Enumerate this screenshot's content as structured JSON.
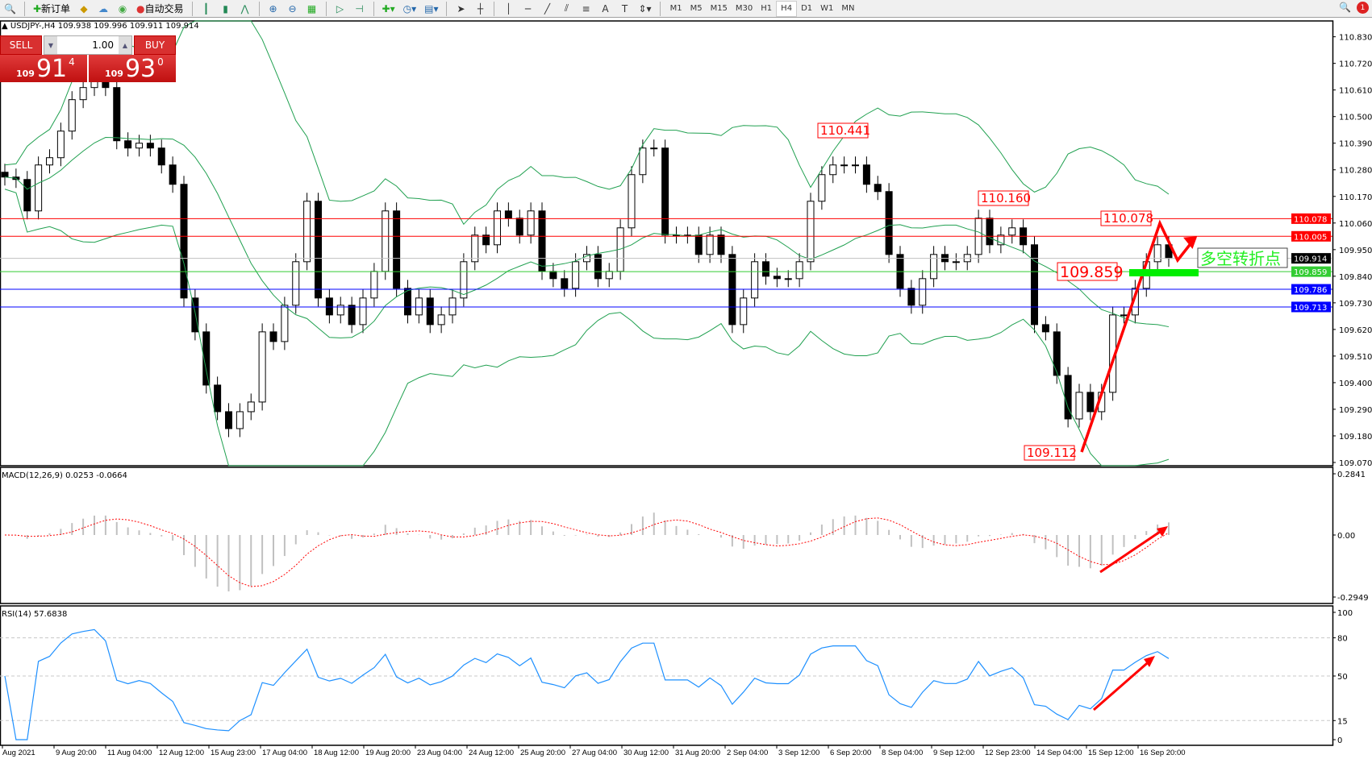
{
  "toolbar": {
    "new_order": "新订单",
    "auto_trading": "自动交易",
    "timeframes": [
      "M1",
      "M5",
      "M15",
      "M30",
      "H1",
      "H4",
      "D1",
      "W1",
      "MN"
    ],
    "active_timeframe": "H4",
    "notification_count": "1"
  },
  "chart": {
    "symbol_info": "USDJPY-,H4  109.938 109.996 109.911 109.914",
    "price_ticks": [
      "110.830",
      "110.720",
      "110.610",
      "110.500",
      "110.390",
      "110.280",
      "110.170",
      "110.060",
      "109.950",
      "109.840",
      "109.730",
      "109.620",
      "109.510",
      "109.400",
      "109.290",
      "109.180",
      "109.070"
    ],
    "price_range": [
      109.07,
      110.83
    ],
    "levels": [
      {
        "price": 110.078,
        "label": "110.078",
        "color": "#ff0000"
      },
      {
        "price": 110.005,
        "label": "110.005",
        "color": "#ff0000"
      },
      {
        "price": 109.914,
        "label": "109.914",
        "color": "#000000",
        "line": "#c0c0c0"
      },
      {
        "price": 109.859,
        "label": "109.859",
        "color": "#33cc33"
      },
      {
        "price": 109.786,
        "label": "109.786",
        "color": "#0000ff"
      },
      {
        "price": 109.713,
        "label": "109.713",
        "color": "#0000ff"
      }
    ],
    "annotations": [
      "110.441",
      "110.160",
      "110.078",
      "109.859",
      "109.112"
    ],
    "turning_point_text": "多空转折点",
    "closes": [
      110.25,
      110.24,
      110.11,
      110.3,
      110.33,
      110.44,
      110.57,
      110.62,
      110.66,
      110.62,
      110.4,
      110.37,
      110.39,
      110.37,
      110.3,
      110.22,
      109.75,
      109.61,
      109.39,
      109.28,
      109.21,
      109.28,
      109.32,
      109.61,
      109.57,
      109.72,
      109.9,
      110.15,
      109.75,
      109.68,
      109.72,
      109.64,
      109.75,
      109.86,
      110.11,
      109.79,
      109.68,
      109.75,
      109.64,
      109.68,
      109.75,
      109.9,
      110.01,
      109.97,
      110.11,
      110.08,
      110.01,
      110.11,
      109.86,
      109.83,
      109.79,
      109.9,
      109.93,
      109.83,
      109.86,
      110.04,
      110.26,
      110.37,
      110.37,
      110.01,
      110.01,
      110.01,
      109.93,
      110.01,
      109.93,
      109.64,
      109.75,
      109.9,
      109.84,
      109.83,
      109.83,
      109.9,
      110.15,
      110.26,
      110.3,
      110.3,
      110.3,
      110.22,
      110.19,
      109.93,
      109.79,
      109.72,
      109.83,
      109.93,
      109.9,
      109.9,
      109.93,
      110.08,
      109.97,
      110.01,
      110.04,
      109.97,
      109.64,
      109.61,
      109.43,
      109.25,
      109.36,
      109.28,
      109.36,
      109.68,
      109.68,
      109.79,
      109.9,
      109.97,
      109.914
    ],
    "accent_up": "#ff0000",
    "band_color": "#20a050"
  },
  "trade_panel": {
    "sell_label": "SELL",
    "buy_label": "BUY",
    "lot": "1.00",
    "bid": {
      "prefix": "109",
      "big": "91",
      "sup": "4"
    },
    "ask": {
      "prefix": "109",
      "big": "93",
      "sup": "0"
    }
  },
  "macd": {
    "label": "MACD(12,26,9) 0.0253 -0.0664",
    "ticks": [
      "0.2841",
      "0.00",
      "-0.2949"
    ]
  },
  "rsi": {
    "label": "RSI(14) 57.6838",
    "ticks": [
      "100",
      "80",
      "50",
      "15",
      "0"
    ]
  },
  "time_labels": [
    "Aug 2021",
    "9 Aug 20:00",
    "11 Aug 04:00",
    "12 Aug 12:00",
    "15 Aug 23:00",
    "17 Aug 04:00",
    "18 Aug 12:00",
    "19 Aug 20:00",
    "23 Aug 04:00",
    "24 Aug 12:00",
    "25 Aug 20:00",
    "27 Aug 04:00",
    "30 Aug 12:00",
    "31 Aug 20:00",
    "2 Sep 04:00",
    "3 Sep 12:00",
    "6 Sep 20:00",
    "8 Sep 04:00",
    "9 Sep 12:00",
    "12 Sep 23:00",
    "14 Sep 04:00",
    "15 Sep 12:00",
    "16 Sep 20:00"
  ]
}
